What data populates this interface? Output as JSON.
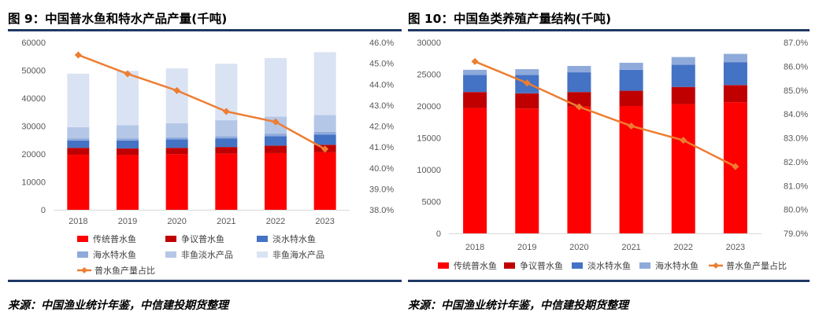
{
  "left_panel": {
    "title": "图 9：中国普水鱼和特水产品产量(千吨)",
    "source": "来源：中国渔业统计年鉴，中信建投期货整理"
  },
  "right_panel": {
    "title": "图 10：中国鱼类养殖产量结构(千吨)",
    "source": "来源：中国渔业统计年鉴，中信建投期货整理"
  },
  "chart_data": [
    {
      "type": "bar",
      "stacked": true,
      "categories": [
        "2018",
        "2019",
        "2020",
        "2021",
        "2022",
        "2023"
      ],
      "y_ticks": [
        "0",
        "10000",
        "20000",
        "30000",
        "40000",
        "50000",
        "60000"
      ],
      "y2_ticks": [
        "38.0%",
        "39.0%",
        "40.0%",
        "41.0%",
        "42.0%",
        "43.0%",
        "44.0%",
        "45.0%",
        "46.0%"
      ],
      "ylim": [
        0,
        60000
      ],
      "y2lim": [
        38,
        46
      ],
      "legend_position": "bottom",
      "series": [
        {
          "name": "传统普水鱼",
          "color": "#ff0000",
          "values": [
            19700,
            19600,
            19900,
            20100,
            20300,
            20600
          ]
        },
        {
          "name": "争议普水鱼",
          "color": "#c00000",
          "values": [
            2500,
            2400,
            2300,
            2400,
            2700,
            2700
          ]
        },
        {
          "name": "淡水特水鱼",
          "color": "#4472c4",
          "values": [
            2600,
            2800,
            3000,
            3100,
            3400,
            3600
          ]
        },
        {
          "name": "海水特水鱼",
          "color": "#8eaadb",
          "values": [
            800,
            800,
            800,
            800,
            900,
            1000
          ]
        },
        {
          "name": "非鱼淡水产品",
          "color": "#b4c7e7",
          "values": [
            4000,
            4700,
            5000,
            5700,
            6100,
            6100
          ]
        },
        {
          "name": "非鱼海水产品",
          "color": "#dae3f3",
          "values": [
            19200,
            19500,
            19700,
            20300,
            21000,
            22500
          ]
        }
      ],
      "line_series": {
        "name": "普水鱼产量占比",
        "color": "#ed7d31",
        "axis": "right",
        "values": [
          45.4,
          44.5,
          43.7,
          42.7,
          42.2,
          40.9
        ]
      }
    },
    {
      "type": "bar",
      "stacked": true,
      "categories": [
        "2018",
        "2019",
        "2020",
        "2021",
        "2022",
        "2023"
      ],
      "y_ticks": [
        "0",
        "5000",
        "10000",
        "15000",
        "20000",
        "25000",
        "30000"
      ],
      "y2_ticks": [
        "79.0%",
        "80.0%",
        "81.0%",
        "82.0%",
        "83.0%",
        "84.0%",
        "85.0%",
        "86.0%",
        "87.0%"
      ],
      "ylim": [
        0,
        30000
      ],
      "y2lim": [
        79,
        87
      ],
      "legend_position": "bottom",
      "series": [
        {
          "name": "传统普水鱼",
          "color": "#ff0000",
          "values": [
            19700,
            19600,
            19900,
            20000,
            20300,
            20600
          ]
        },
        {
          "name": "争议普水鱼",
          "color": "#c00000",
          "values": [
            2500,
            2400,
            2300,
            2400,
            2700,
            2700
          ]
        },
        {
          "name": "淡水特水鱼",
          "color": "#4472c4",
          "values": [
            2700,
            2900,
            3100,
            3300,
            3500,
            3600
          ]
        },
        {
          "name": "海水特水鱼",
          "color": "#8eaadb",
          "values": [
            800,
            900,
            1000,
            1100,
            1200,
            1300
          ]
        }
      ],
      "line_series": {
        "name": "普水鱼产量占比",
        "color": "#ed7d31",
        "axis": "right",
        "values": [
          86.2,
          85.3,
          84.3,
          83.5,
          82.9,
          81.8
        ]
      }
    }
  ]
}
